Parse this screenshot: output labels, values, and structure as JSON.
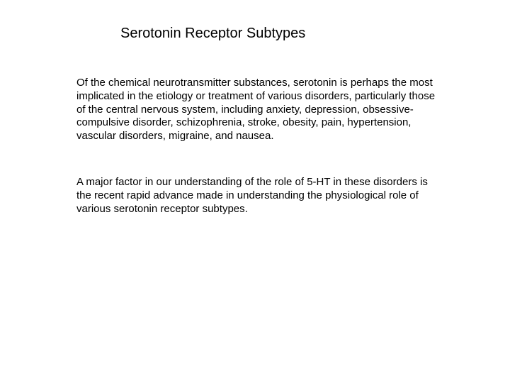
{
  "title": "Serotonin Receptor Subtypes",
  "paragraph1": "Of the chemical neurotransmitter substances, serotonin is perhaps the most implicated in the etiology or treatment of various disorders, particularly those of the central nervous system, including anxiety, depression, obsessive-compulsive disorder, schizophrenia, stroke, obesity, pain, hypertension, vascular disorders, migraine, and nausea.",
  "paragraph2": "A major factor in our understanding of the role of 5-HT in these disorders is the recent rapid advance made in understanding the physiological role of various serotonin receptor subtypes.",
  "colors": {
    "background": "#ffffff",
    "text": "#000000"
  },
  "typography": {
    "title_fontsize": 20,
    "body_fontsize": 15,
    "font_family": "Arial"
  }
}
